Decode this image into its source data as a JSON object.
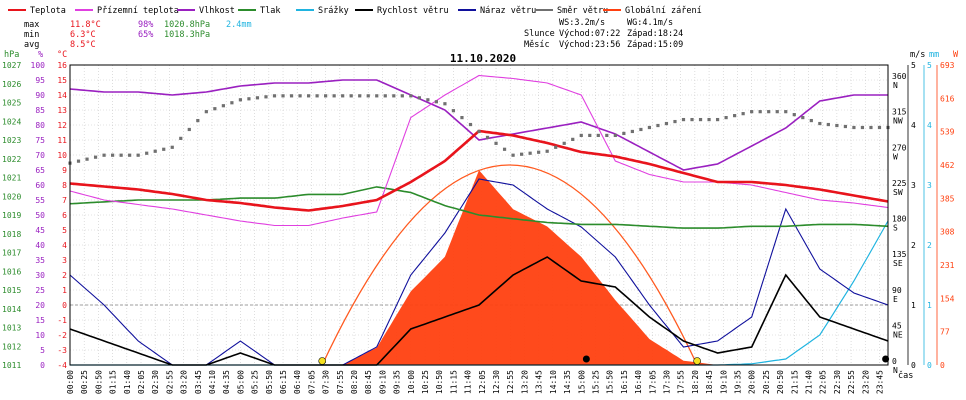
{
  "chart_data": {
    "type": "line",
    "title": "11.10.2020",
    "legend": [
      {
        "name": "Teplota",
        "color": "#e8141c"
      },
      {
        "name": "Přízemní teplota",
        "color": "#e040e0"
      },
      {
        "name": "Vlhkost",
        "color": "#9a20c0"
      },
      {
        "name": "Tlak",
        "color": "#2c8c2c"
      },
      {
        "name": "Srážky",
        "color": "#20b4e0"
      },
      {
        "name": "Rychlost větru",
        "color": "#000000"
      },
      {
        "name": "Náraz větru",
        "color": "#10109c"
      },
      {
        "name": "Směr větru",
        "color": "#707070"
      },
      {
        "name": "Globální záření",
        "color": "#ff4010"
      }
    ],
    "stats": {
      "max": {
        "label": "max",
        "temp": "11.8°C",
        "hum": "98%",
        "press": "1020.8hPa",
        "rain": "2.4mm"
      },
      "min": {
        "label": "min",
        "temp": "6.3°C",
        "hum": "65%",
        "press": "1018.3hPa"
      },
      "avg": {
        "label": "avg",
        "temp": "8.5°C"
      }
    },
    "info": {
      "ws": "WS:3.2m/s",
      "wg": "WG:4.1m/s",
      "sun_label": "Slunce",
      "sun_rise": "Východ:07:22",
      "sun_set": "Západ:18:24",
      "moon_label": "Měsíc",
      "moon_rise": "Východ:23:56",
      "moon_set": "Západ:15:09"
    },
    "axes": {
      "press_unit": "hPa",
      "hum_unit": "%",
      "temp_unit": "°C",
      "wind_unit": "m/s",
      "rain_unit": "mm",
      "rad_unit": "W",
      "x_unit": "čas",
      "press_ticks": [
        "1011",
        "1012",
        "1013",
        "1014",
        "1015",
        "1016",
        "1017",
        "1018",
        "1019",
        "1020",
        "1021",
        "1022",
        "1023",
        "1024",
        "1025",
        "1026",
        "1027"
      ],
      "hum_ticks": [
        "0",
        "5",
        "10",
        "15",
        "20",
        "25",
        "30",
        "35",
        "40",
        "45",
        "50",
        "55",
        "60",
        "65",
        "70",
        "75",
        "80",
        "85",
        "90",
        "95",
        "100"
      ],
      "temp_ticks": [
        "-4",
        "-3",
        "-2",
        "-1",
        "0",
        "1",
        "2",
        "3",
        "4",
        "5",
        "6",
        "7",
        "8",
        "9",
        "10",
        "11",
        "12",
        "13",
        "14",
        "15",
        "16"
      ],
      "dir_ticks": [
        {
          "deg": "0",
          "dir": "N"
        },
        {
          "deg": "45",
          "dir": "NE"
        },
        {
          "deg": "90",
          "dir": "E"
        },
        {
          "deg": "135",
          "dir": "SE"
        },
        {
          "deg": "180",
          "dir": "S"
        },
        {
          "deg": "225",
          "dir": "SW"
        },
        {
          "deg": "270",
          "dir": "W"
        },
        {
          "deg": "315",
          "dir": "NW"
        },
        {
          "deg": "360",
          "dir": "N"
        }
      ],
      "wind_ticks": [
        "0",
        "1",
        "2",
        "3",
        "4",
        "5"
      ],
      "rain_ticks": [
        "0",
        "1",
        "2",
        "3",
        "4",
        "5"
      ],
      "rad_ticks": [
        "0",
        "77",
        "154",
        "231",
        "308",
        "385",
        "462",
        "539",
        "616",
        "693"
      ],
      "time_labels": [
        "00:00",
        "00:25",
        "00:50",
        "01:15",
        "01:40",
        "02:05",
        "02:30",
        "02:55",
        "03:20",
        "03:45",
        "04:10",
        "04:35",
        "05:00",
        "05:25",
        "05:50",
        "06:15",
        "06:40",
        "07:05",
        "07:30",
        "07:55",
        "08:20",
        "08:45",
        "09:10",
        "09:35",
        "10:00",
        "10:25",
        "10:50",
        "11:15",
        "11:40",
        "12:05",
        "12:30",
        "12:55",
        "13:20",
        "13:45",
        "14:10",
        "14:35",
        "15:00",
        "15:25",
        "15:50",
        "16:15",
        "16:40",
        "17:05",
        "17:30",
        "17:55",
        "18:20",
        "18:45",
        "19:10",
        "19:35",
        "20:00",
        "20:25",
        "20:50",
        "21:15",
        "21:40",
        "22:05",
        "22:30",
        "22:55",
        "23:20",
        "23:45"
      ]
    },
    "ranges": {
      "temp": [
        -4,
        16
      ],
      "hum": [
        0,
        100
      ],
      "press": [
        1011,
        1027
      ],
      "dir": [
        0,
        360
      ],
      "wind": [
        0,
        5
      ],
      "rain": [
        0,
        5
      ],
      "rad": [
        0,
        693
      ],
      "hours": [
        0,
        24
      ]
    },
    "series_hourly": {
      "hours": [
        0,
        1,
        2,
        3,
        4,
        5,
        6,
        7,
        8,
        9,
        10,
        11,
        12,
        13,
        14,
        15,
        16,
        17,
        18,
        19,
        20,
        21,
        22,
        23,
        24
      ],
      "temperature": [
        8.1,
        7.9,
        7.7,
        7.4,
        7.0,
        6.8,
        6.5,
        6.3,
        6.6,
        7.0,
        8.2,
        9.6,
        11.6,
        11.3,
        10.8,
        10.2,
        9.9,
        9.4,
        8.8,
        8.2,
        8.2,
        8.0,
        7.7,
        7.3,
        6.9
      ],
      "ground_temperature": [
        7.6,
        7.0,
        6.7,
        6.4,
        6.0,
        5.6,
        5.3,
        5.3,
        5.8,
        6.2,
        12.5,
        14.0,
        15.3,
        15.1,
        14.8,
        14.0,
        9.6,
        8.7,
        8.2,
        8.2,
        8.0,
        7.5,
        7.0,
        6.8,
        6.5
      ],
      "humidity": [
        92,
        91,
        91,
        90,
        91,
        93,
        94,
        94,
        95,
        95,
        90,
        85,
        75,
        77,
        79,
        81,
        77,
        71,
        65,
        67,
        73,
        79,
        88,
        90,
        90
      ],
      "pressure": [
        1019.6,
        1019.7,
        1019.8,
        1019.8,
        1019.8,
        1019.9,
        1019.9,
        1020.1,
        1020.1,
        1020.5,
        1020.2,
        1019.5,
        1019.0,
        1018.8,
        1018.6,
        1018.5,
        1018.5,
        1018.4,
        1018.3,
        1018.3,
        1018.4,
        1018.4,
        1018.5,
        1018.5,
        1018.4
      ],
      "wind_direction": [
        255,
        265,
        265,
        275,
        320,
        335,
        340,
        340,
        340,
        340,
        340,
        330,
        295,
        265,
        270,
        290,
        290,
        300,
        310,
        310,
        320,
        320,
        305,
        300,
        300
      ],
      "wind_speed": [
        0.6,
        0.4,
        0.2,
        0.0,
        0.0,
        0.2,
        0.0,
        0.0,
        0.0,
        0.0,
        0.6,
        0.8,
        1.0,
        1.5,
        1.8,
        1.4,
        1.3,
        0.8,
        0.4,
        0.2,
        0.3,
        1.5,
        0.8,
        0.6,
        0.4
      ],
      "gust_speed": [
        1.5,
        1.0,
        0.4,
        0.0,
        0.0,
        0.4,
        0.0,
        0.0,
        0.0,
        0.3,
        1.5,
        2.2,
        3.1,
        3.0,
        2.6,
        2.3,
        1.8,
        1.0,
        0.3,
        0.4,
        0.8,
        2.6,
        1.6,
        1.2,
        1.0
      ],
      "global_radiation": [
        0,
        0,
        0,
        0,
        0,
        0,
        0,
        0,
        0,
        40,
        170,
        250,
        450,
        360,
        320,
        250,
        150,
        60,
        10,
        0,
        0,
        0,
        0,
        0,
        0
      ],
      "rain_total": [
        0,
        0,
        0,
        0,
        0,
        0,
        0,
        0,
        0,
        0,
        0,
        0,
        0,
        0,
        0,
        0,
        0,
        0,
        0,
        0,
        0.02,
        0.1,
        0.5,
        1.4,
        2.4
      ]
    },
    "theoretical_radiation": {
      "hours": [
        7.4,
        12.9,
        18.4
      ],
      "values": [
        0,
        462,
        0
      ]
    }
  }
}
